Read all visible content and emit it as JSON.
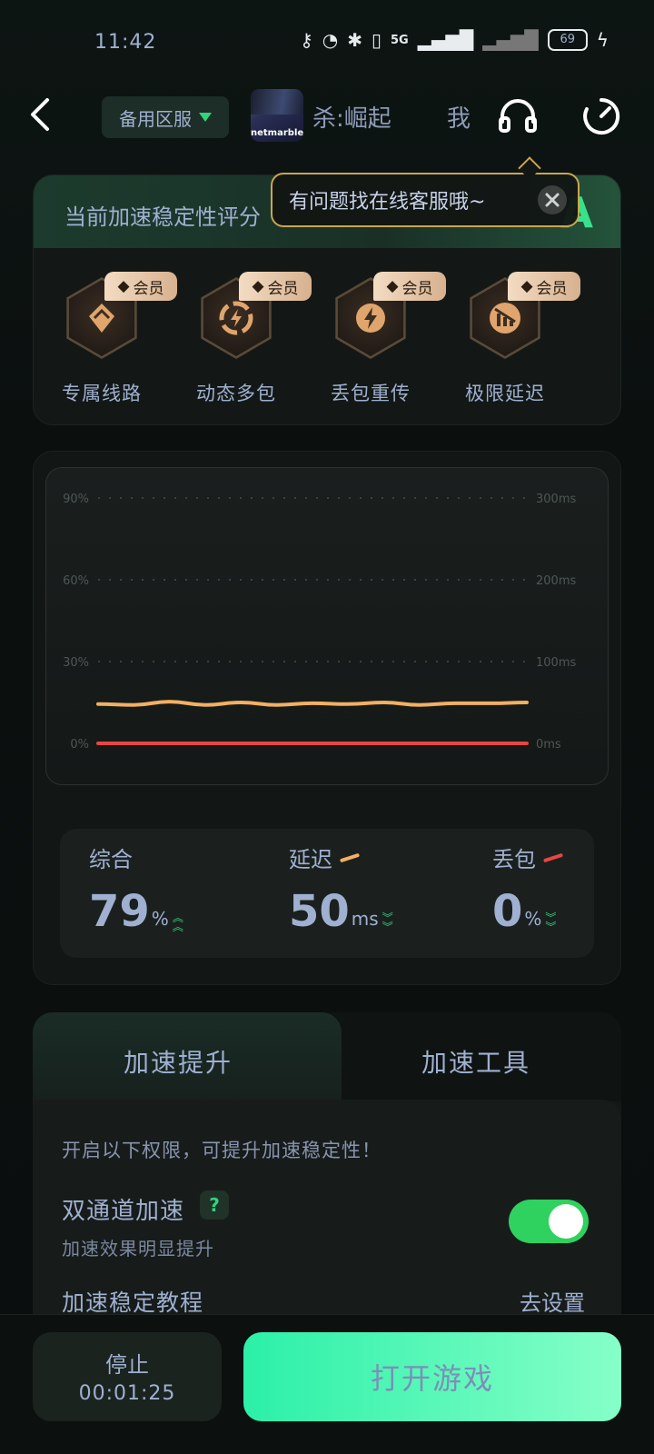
{
  "status_bar": {
    "time": "11:42",
    "network": "5G",
    "battery": "69"
  },
  "header": {
    "server_label": "备用区服",
    "game_brand": "netmarble",
    "game_title": "杀:崛起",
    "me_label": "我",
    "icons": [
      "back-icon",
      "headset-icon",
      "timer-icon"
    ]
  },
  "tooltip": {
    "text": "有问题找在线客服哦~"
  },
  "stability": {
    "title": "当前加速稳定性评分",
    "grade": "A",
    "perks": [
      {
        "label": "专属线路",
        "badge": "会员",
        "icon": "shield-line-icon"
      },
      {
        "label": "动态多包",
        "badge": "会员",
        "icon": "multi-packet-icon"
      },
      {
        "label": "丢包重传",
        "badge": "会员",
        "icon": "retransmit-icon"
      },
      {
        "label": "极限延迟",
        "badge": "会员",
        "icon": "latency-icon"
      }
    ]
  },
  "chart_data": {
    "type": "line",
    "y_left_ticks": [
      "90%",
      "60%",
      "30%",
      "0%"
    ],
    "y_right_ticks": [
      "300ms",
      "200ms",
      "100ms",
      "0ms"
    ],
    "ylim_left": [
      0,
      90
    ],
    "ylim_right": [
      0,
      300
    ],
    "series": [
      {
        "name": "延迟",
        "axis": "right",
        "color": "#f2b062",
        "values": [
          48,
          47,
          51,
          47,
          50,
          47,
          49,
          48,
          50,
          47,
          49,
          49,
          50
        ]
      },
      {
        "name": "丢包",
        "axis": "left",
        "color": "#e84545",
        "values": [
          0,
          0,
          0,
          0,
          0,
          0,
          0,
          0,
          0,
          0,
          0,
          0,
          0
        ]
      }
    ]
  },
  "metrics": {
    "overall": {
      "label": "综合",
      "value": "79",
      "unit": "%"
    },
    "latency": {
      "label": "延迟",
      "value": "50",
      "unit": "ms"
    },
    "loss": {
      "label": "丢包",
      "value": "0",
      "unit": "%"
    }
  },
  "boost": {
    "tab_active": "加速提升",
    "tab_other": "加速工具",
    "hint": "开启以下权限，可提升加速稳定性！",
    "dual_title": "双通道加速",
    "dual_help": "?",
    "dual_sub": "加速效果明显提升",
    "dual_enabled": true,
    "tutorial": "加速稳定教程",
    "go_settings": "去设置"
  },
  "bottom": {
    "stop_label": "停止",
    "stop_timer": "00:01:25",
    "open_game": "打开游戏"
  },
  "colors": {
    "accent_green": "#2fd47c",
    "gold": "#c9a64d",
    "latency_line": "#f2b062",
    "loss_line": "#e84545"
  }
}
